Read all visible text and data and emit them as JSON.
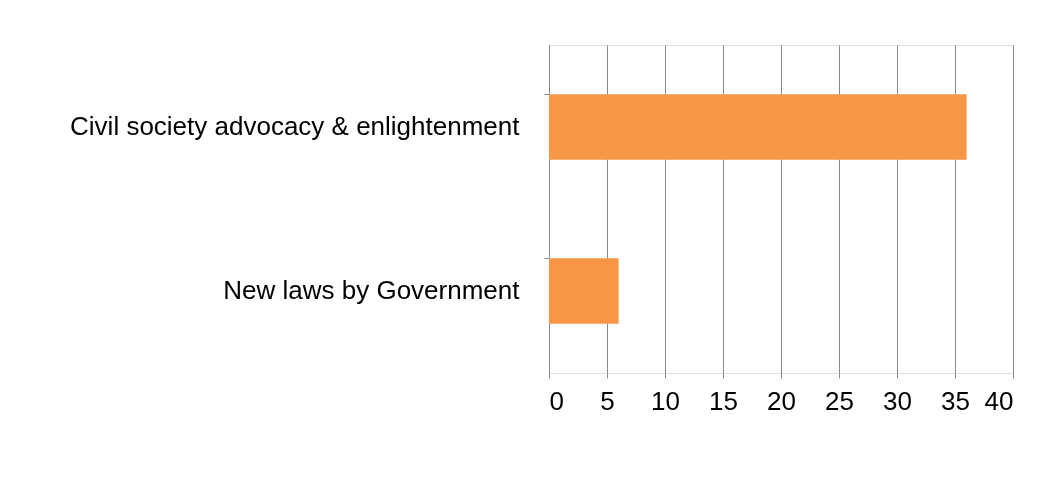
{
  "chart_data": {
    "type": "bar",
    "orientation": "horizontal",
    "categories": [
      "Civil society advocacy & enlightenment",
      "New laws by Government"
    ],
    "values": [
      36,
      6
    ],
    "color": "#f79646",
    "xlim": [
      0,
      40
    ],
    "xticks": [
      0,
      5,
      10,
      15,
      20,
      25,
      30,
      35,
      40
    ],
    "grid": "x"
  }
}
